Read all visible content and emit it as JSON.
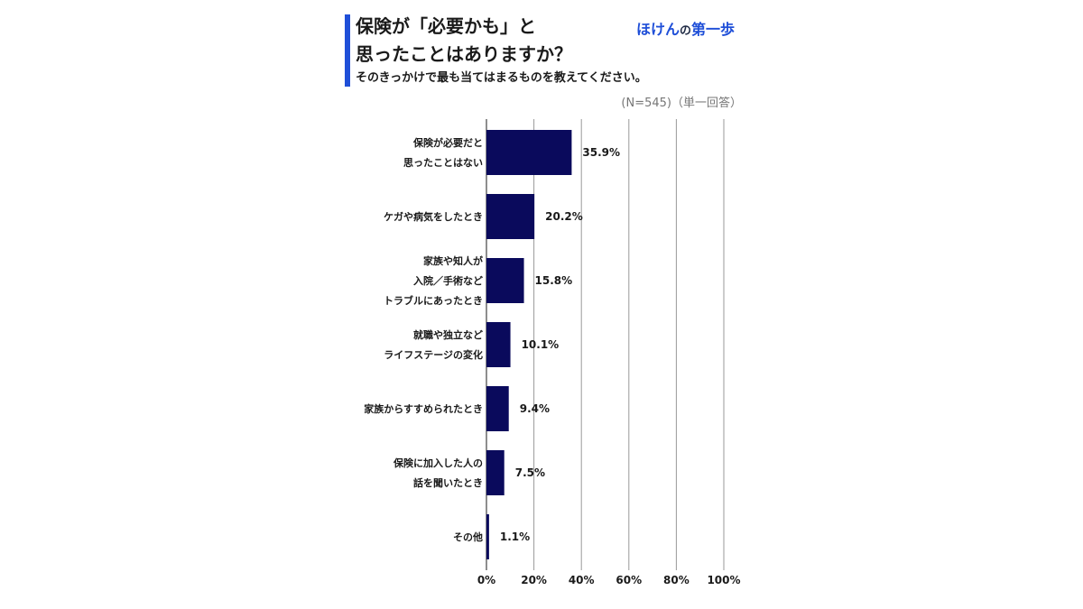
{
  "header": {
    "title_line1": "保険が「必要かも」と",
    "title_line2": "思ったことはありますか？",
    "subtitle": "そのきっかけで最も当てはまるものを教えてください。",
    "note": "(N=545)（単一回答）"
  },
  "brand": {
    "part1": "ほけん",
    "part2": "の",
    "part3": "第一歩"
  },
  "colors": {
    "bar": "#0a0a5c",
    "accent": "#1f4fd8",
    "grid": "#999999"
  },
  "chart_data": {
    "type": "bar",
    "orientation": "horizontal",
    "categories": [
      [
        "保険が必要だと",
        "思ったことはない"
      ],
      [
        "ケガや病気をしたとき"
      ],
      [
        "家族や知人が",
        "入院／手術など",
        "トラブルにあったとき"
      ],
      [
        "就職や独立など",
        "ライフステージの変化"
      ],
      [
        "家族からすすめられたとき"
      ],
      [
        "保険に加入した人の",
        "話を聞いたとき"
      ],
      [
        "その他"
      ]
    ],
    "values": [
      35.9,
      20.2,
      15.8,
      10.1,
      9.4,
      7.5,
      1.1
    ],
    "value_labels": [
      "35.9%",
      "20.2%",
      "15.8%",
      "10.1%",
      "9.4%",
      "7.5%",
      "1.1%"
    ],
    "xlim": [
      0,
      100
    ],
    "ticks": [
      0,
      20,
      40,
      60,
      80,
      100
    ],
    "tick_labels": [
      "0%",
      "20%",
      "40%",
      "60%",
      "80%",
      "100%"
    ],
    "grid": true
  }
}
